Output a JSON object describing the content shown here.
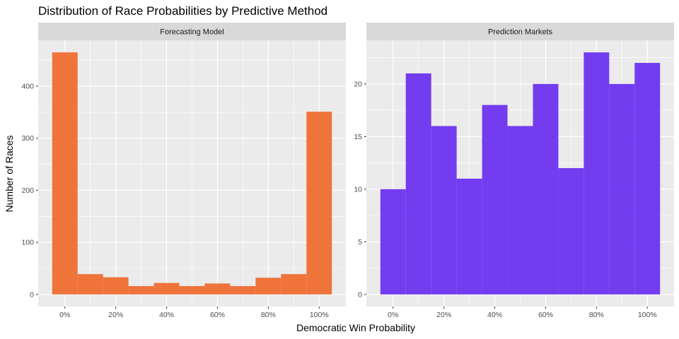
{
  "chart_data": {
    "type": "bar",
    "title": "Distribution of Race Probabilities by Predictive Method",
    "xlabel": "Democratic Win Probability",
    "ylabel": "Number of Races",
    "x_tick_labels": [
      "0%",
      "20%",
      "40%",
      "60%",
      "80%",
      "100%"
    ],
    "x_ticks": [
      0,
      0.2,
      0.4,
      0.6,
      0.8,
      1.0
    ],
    "xlim": [
      -0.105,
      1.105
    ],
    "bin_width": 0.1,
    "bin_centers": [
      0,
      0.1,
      0.2,
      0.3,
      0.4,
      0.5,
      0.6,
      0.7,
      0.8,
      0.9,
      1.0
    ],
    "grid": true,
    "panels": [
      {
        "strip_label": "Forecasting Model",
        "color": "#ef743b",
        "values": [
          465,
          39,
          33,
          16,
          22,
          16,
          21,
          16,
          32,
          39,
          351
        ],
        "ylim": [
          -23.25,
          488.25
        ],
        "y_ticks": [
          0,
          100,
          200,
          300,
          400
        ],
        "y_tick_labels": [
          "0",
          "100",
          "200",
          "300",
          "400"
        ]
      },
      {
        "strip_label": "Prediction Markets",
        "color": "#733def",
        "values": [
          10,
          21,
          16,
          11,
          18,
          16,
          20,
          12,
          23,
          20,
          22
        ],
        "ylim": [
          -1.15,
          24.15
        ],
        "y_ticks": [
          0,
          5,
          10,
          15,
          20
        ],
        "y_tick_labels": [
          "0",
          "5",
          "10",
          "15",
          "20"
        ]
      }
    ]
  }
}
